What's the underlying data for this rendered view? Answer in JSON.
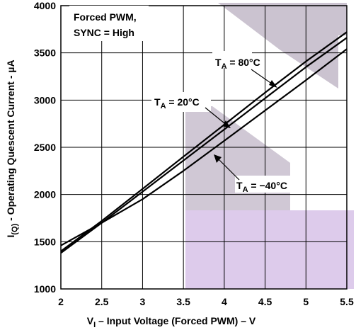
{
  "chart_data": {
    "type": "line",
    "title": "",
    "xlabel": "V",
    "xlabel_sub": "I",
    "xlabel_rest": " – Input Voltage (Forced PWM) – V",
    "ylabel": "I(Q) - Operating Quescent Current - µA",
    "ylabel_main": "I",
    "ylabel_sub": "(Q)",
    "ylabel_rest": " - Operating Quescent Current - µA",
    "xlim": [
      2,
      5.5
    ],
    "ylim": [
      1000,
      4000
    ],
    "x_ticks": [
      "2",
      "2.5",
      "3",
      "3.5",
      "4",
      "4.5",
      "5",
      "5.5"
    ],
    "y_ticks": [
      "1000",
      "1500",
      "2000",
      "2500",
      "3000",
      "3500",
      "4000"
    ],
    "grid": true,
    "condition_text": [
      "Forced PWM,",
      "SYNC = High"
    ],
    "series": [
      {
        "name": "TA = 80°C",
        "label_main": "T",
        "label_sub": "A",
        "label_rest": " = 80°C",
        "x": [
          2,
          2.5,
          3,
          3.5,
          4,
          4.5,
          5,
          5.5
        ],
        "y": [
          1400,
          1720,
          2060,
          2400,
          2740,
          3080,
          3410,
          3720
        ]
      },
      {
        "name": "TA = 20°C",
        "label_main": "T",
        "label_sub": "A",
        "label_rest": " = 20°C",
        "x": [
          2,
          2.5,
          3,
          3.5,
          4,
          4.5,
          5,
          5.5
        ],
        "y": [
          1380,
          1700,
          2030,
          2360,
          2690,
          3020,
          3350,
          3660
        ]
      },
      {
        "name": "TA = −40°C",
        "label_main": "T",
        "label_sub": "A",
        "label_rest": " = −40°C",
        "x": [
          2,
          2.5,
          3,
          3.5,
          4,
          4.5,
          5,
          5.5
        ],
        "y": [
          1460,
          1700,
          1950,
          2250,
          2570,
          2890,
          3210,
          3540
        ]
      }
    ]
  }
}
